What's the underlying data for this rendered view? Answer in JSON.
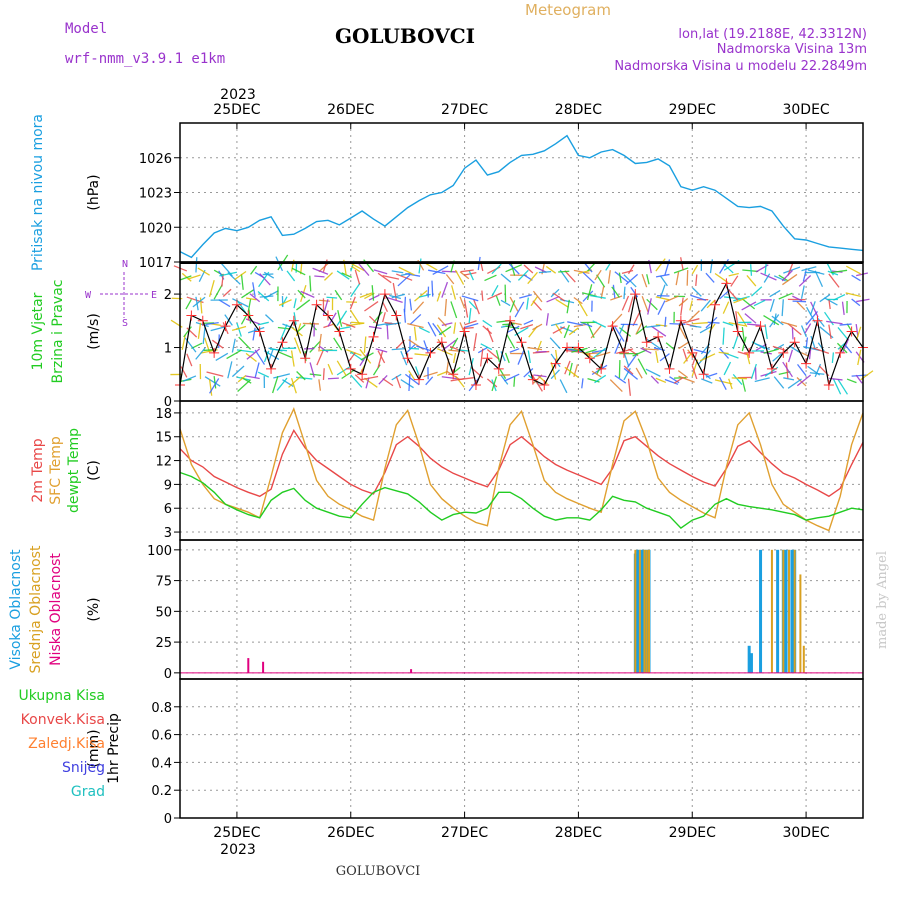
{
  "header": {
    "model_label": "Model",
    "model_name": "wrf-nmm_v3.9.1 e1km",
    "station": "GOLUBOVCI",
    "product": "Meteogram",
    "lonlat": "lon,lat (19.2188E, 42.3312N)",
    "elevation": "Nadmorska Visina 13m",
    "model_elevation": "Nadmorska Visina u modelu 22.2849m",
    "year_top": "2023",
    "year_bottom": "2023",
    "footer_station": "GOLUBOVCI",
    "credit": "made by Angel"
  },
  "colors": {
    "pressure": "#1a9fe0",
    "wind_line": "#000000",
    "wind_cross": "#ff3030",
    "temp2m": "#e84848",
    "sfc_temp": "#e0a030",
    "dewpt": "#22cc22",
    "cloud_high": "#1a9fe0",
    "cloud_mid": "#d8a020",
    "cloud_low": "#e0007f",
    "precip_total": "#22cc22",
    "precip_conv": "#e84848",
    "precip_frz": "#ff8030",
    "precip_snow": "#4040e0",
    "precip_grad": "#20c0c0",
    "wind_label": "#9933cc"
  },
  "chart_data": [
    {
      "type": "line",
      "panel": "pressure",
      "ylabel_lines": [
        "Pritisak na nivou mora"
      ],
      "unit": "(hPa)",
      "ylim": [
        1017,
        1029
      ],
      "yticks": [
        1017,
        1020,
        1023,
        1026
      ],
      "xlim": [
        0,
        6
      ],
      "xticks": [
        0.5,
        1.5,
        2.5,
        3.5,
        4.5,
        5.5
      ],
      "xtick_labels": [
        "25DEC",
        "26DEC",
        "27DEC",
        "28DEC",
        "29DEC",
        "30DEC"
      ],
      "grid": true,
      "series": [
        {
          "key": "pressure",
          "x": [
            0,
            0.1,
            0.2,
            0.3,
            0.4,
            0.5,
            0.6,
            0.7,
            0.8,
            0.9,
            1.0,
            1.1,
            1.2,
            1.3,
            1.4,
            1.5,
            1.6,
            1.7,
            1.8,
            1.9,
            2.0,
            2.1,
            2.2,
            2.3,
            2.4,
            2.5,
            2.6,
            2.7,
            2.8,
            2.9,
            3.0,
            3.1,
            3.2,
            3.3,
            3.4,
            3.5,
            3.6,
            3.7,
            3.8,
            3.9,
            4.0,
            4.1,
            4.2,
            4.3,
            4.4,
            4.5,
            4.6,
            4.7,
            4.8,
            4.9,
            5.0,
            5.1,
            5.2,
            5.3,
            5.4,
            5.5,
            5.6,
            5.7,
            5.8,
            5.9,
            6.0
          ],
          "values": [
            1017.9,
            1017.4,
            1018.5,
            1019.5,
            1019.9,
            1019.7,
            1020.0,
            1020.6,
            1020.9,
            1019.3,
            1019.4,
            1019.9,
            1020.5,
            1020.6,
            1020.2,
            1020.8,
            1021.4,
            1020.7,
            1020.1,
            1020.9,
            1021.7,
            1022.3,
            1022.8,
            1023.0,
            1023.6,
            1025.1,
            1025.8,
            1024.5,
            1024.8,
            1025.6,
            1026.2,
            1026.3,
            1026.6,
            1027.2,
            1027.9,
            1026.2,
            1026.0,
            1026.5,
            1026.7,
            1026.2,
            1025.5,
            1025.6,
            1025.9,
            1025.3,
            1023.5,
            1023.2,
            1023.5,
            1023.2,
            1022.5,
            1021.8,
            1021.7,
            1021.8,
            1021.4,
            1020.1,
            1019.0,
            1018.9,
            1018.6,
            1018.3,
            1018.2,
            1018.1,
            1018.0
          ]
        }
      ]
    },
    {
      "type": "line",
      "panel": "wind",
      "ylabel_lines": [
        "10m Vjetar",
        "Brzina i Pravac"
      ],
      "unit": "(m/s)",
      "direction_legend": [
        "W",
        "E",
        "N",
        "S"
      ],
      "ylim": [
        0,
        2.6
      ],
      "yticks": [
        0,
        1,
        2
      ],
      "xlim": [
        0,
        6
      ],
      "grid": true,
      "series": [
        {
          "key": "wind_speed",
          "x": [
            0,
            0.1,
            0.2,
            0.3,
            0.4,
            0.5,
            0.6,
            0.7,
            0.8,
            0.9,
            1.0,
            1.1,
            1.2,
            1.3,
            1.4,
            1.5,
            1.6,
            1.7,
            1.8,
            1.9,
            2.0,
            2.1,
            2.2,
            2.3,
            2.4,
            2.5,
            2.6,
            2.7,
            2.8,
            2.9,
            3.0,
            3.1,
            3.2,
            3.3,
            3.4,
            3.5,
            3.6,
            3.7,
            3.8,
            3.9,
            4.0,
            4.1,
            4.2,
            4.3,
            4.4,
            4.5,
            4.6,
            4.7,
            4.8,
            4.9,
            5.0,
            5.1,
            5.2,
            5.3,
            5.4,
            5.5,
            5.6,
            5.7,
            5.8,
            5.9,
            6.0
          ],
          "values": [
            0.3,
            1.6,
            1.5,
            0.9,
            1.4,
            1.8,
            1.6,
            1.3,
            0.6,
            1.1,
            1.5,
            0.8,
            1.8,
            1.6,
            1.3,
            0.6,
            0.5,
            1.2,
            2.0,
            1.6,
            0.8,
            0.4,
            0.9,
            1.1,
            0.5,
            1.3,
            0.3,
            0.8,
            0.6,
            1.5,
            1.1,
            0.4,
            0.3,
            0.7,
            1.0,
            1.0,
            0.8,
            0.6,
            1.4,
            0.9,
            2.0,
            1.1,
            1.2,
            0.6,
            1.5,
            0.9,
            0.5,
            1.8,
            2.2,
            1.3,
            0.9,
            1.4,
            0.6,
            0.9,
            1.1,
            0.7,
            1.5,
            0.3,
            0.9,
            1.3,
            1.0
          ]
        }
      ]
    },
    {
      "type": "line",
      "panel": "temperature",
      "ylabel_lines": [
        "2m Temp",
        "SFC Temp",
        "dewpt Temp"
      ],
      "unit": "(C)",
      "ylim": [
        2,
        19.5
      ],
      "yticks": [
        3,
        6,
        9,
        12,
        15,
        18
      ],
      "xlim": [
        0,
        6
      ],
      "grid": true,
      "series": [
        {
          "key": "temp2m",
          "x": [
            0,
            0.1,
            0.2,
            0.3,
            0.4,
            0.5,
            0.6,
            0.7,
            0.8,
            0.9,
            1.0,
            1.1,
            1.2,
            1.3,
            1.4,
            1.5,
            1.6,
            1.7,
            1.8,
            1.9,
            2.0,
            2.1,
            2.2,
            2.3,
            2.4,
            2.5,
            2.6,
            2.7,
            2.8,
            2.9,
            3.0,
            3.1,
            3.2,
            3.3,
            3.4,
            3.5,
            3.6,
            3.7,
            3.8,
            3.9,
            4.0,
            4.1,
            4.2,
            4.3,
            4.4,
            4.5,
            4.6,
            4.7,
            4.8,
            4.9,
            5.0,
            5.1,
            5.2,
            5.3,
            5.4,
            5.5,
            5.6,
            5.7,
            5.8,
            5.9,
            6.0
          ],
          "values": [
            13.5,
            12.0,
            11.2,
            10.0,
            9.3,
            8.6,
            8.0,
            7.5,
            8.4,
            12.8,
            15.8,
            13.6,
            12.0,
            11.0,
            10.0,
            9.0,
            8.3,
            7.8,
            10.5,
            14.0,
            15.0,
            13.8,
            12.3,
            11.2,
            10.4,
            9.8,
            9.2,
            8.7,
            10.8,
            14.0,
            15.0,
            13.8,
            12.5,
            11.5,
            10.8,
            10.2,
            9.6,
            9.0,
            11.0,
            14.5,
            15.0,
            13.8,
            12.6,
            11.6,
            10.8,
            10.0,
            9.3,
            8.8,
            11.0,
            13.8,
            14.5,
            13.0,
            11.6,
            10.4,
            9.8,
            9.0,
            8.3,
            7.5,
            8.5,
            11.5,
            14.3
          ]
        },
        {
          "key": "sfc_temp",
          "x": [
            0,
            0.1,
            0.2,
            0.3,
            0.4,
            0.5,
            0.6,
            0.7,
            0.8,
            0.9,
            1.0,
            1.1,
            1.2,
            1.3,
            1.4,
            1.5,
            1.6,
            1.7,
            1.8,
            1.9,
            2.0,
            2.1,
            2.2,
            2.3,
            2.4,
            2.5,
            2.6,
            2.7,
            2.8,
            2.9,
            3.0,
            3.1,
            3.2,
            3.3,
            3.4,
            3.5,
            3.6,
            3.7,
            3.8,
            3.9,
            4.0,
            4.1,
            4.2,
            4.3,
            4.4,
            4.5,
            4.6,
            4.7,
            4.8,
            4.9,
            5.0,
            5.1,
            5.2,
            5.3,
            5.4,
            5.5,
            5.6,
            5.7,
            5.8,
            5.9,
            6.0
          ],
          "values": [
            16.0,
            11.5,
            9.0,
            7.2,
            6.5,
            6.0,
            5.5,
            4.8,
            10.0,
            15.5,
            18.5,
            14.0,
            9.5,
            7.5,
            6.5,
            5.8,
            5.0,
            4.5,
            11.0,
            16.5,
            18.3,
            14.0,
            9.0,
            7.2,
            6.0,
            5.0,
            4.2,
            3.8,
            11.0,
            16.5,
            18.2,
            14.0,
            9.5,
            8.0,
            7.2,
            6.6,
            6.0,
            5.5,
            11.5,
            17.0,
            18.2,
            14.5,
            9.8,
            8.0,
            7.0,
            6.2,
            5.4,
            4.8,
            11.2,
            16.5,
            18.0,
            14.0,
            9.0,
            6.5,
            5.5,
            4.5,
            3.8,
            3.2,
            7.5,
            14.0,
            18.0
          ]
        },
        {
          "key": "dewpt",
          "x": [
            0,
            0.1,
            0.2,
            0.3,
            0.4,
            0.5,
            0.6,
            0.7,
            0.8,
            0.9,
            1.0,
            1.1,
            1.2,
            1.3,
            1.4,
            1.5,
            1.6,
            1.7,
            1.8,
            1.9,
            2.0,
            2.1,
            2.2,
            2.3,
            2.4,
            2.5,
            2.6,
            2.7,
            2.8,
            2.9,
            3.0,
            3.1,
            3.2,
            3.3,
            3.4,
            3.5,
            3.6,
            3.7,
            3.8,
            3.9,
            4.0,
            4.1,
            4.2,
            4.3,
            4.4,
            4.5,
            4.6,
            4.7,
            4.8,
            4.9,
            5.0,
            5.1,
            5.2,
            5.3,
            5.4,
            5.5,
            5.6,
            5.7,
            5.8,
            5.9,
            6.0
          ],
          "values": [
            10.5,
            10.0,
            9.2,
            8.0,
            6.5,
            5.8,
            5.2,
            4.8,
            7.0,
            8.0,
            8.5,
            7.0,
            6.0,
            5.5,
            5.0,
            4.8,
            6.5,
            8.0,
            8.6,
            8.2,
            7.8,
            6.8,
            5.5,
            4.5,
            5.2,
            5.5,
            5.4,
            6.0,
            8.0,
            8.0,
            7.2,
            6.0,
            5.0,
            4.5,
            4.8,
            4.8,
            4.5,
            5.8,
            7.5,
            7.0,
            6.8,
            6.0,
            5.5,
            5.0,
            3.5,
            4.5,
            5.0,
            6.5,
            7.2,
            6.5,
            6.2,
            6.0,
            5.8,
            5.5,
            5.2,
            4.5,
            4.8,
            5.0,
            5.5,
            6.0,
            5.8
          ]
        }
      ]
    },
    {
      "type": "bar",
      "panel": "cloud",
      "ylabel_lines": [
        "Visoka Oblacnost",
        "Srednja Oblacnost",
        "Niska Oblacnost"
      ],
      "unit": "(%)",
      "ylim": [
        -5,
        108
      ],
      "yticks": [
        0,
        25,
        50,
        75,
        100
      ],
      "xlim": [
        0,
        6
      ],
      "grid": true,
      "series": [
        {
          "key": "cloud_high",
          "x": [
            4.0,
            4.02,
            4.04,
            4.06,
            4.08,
            4.1,
            4.12,
            5.0,
            5.02,
            5.1,
            5.25,
            5.3,
            5.32,
            5.35,
            5.38,
            5.4
          ],
          "values": [
            97,
            100,
            100,
            100,
            100,
            100,
            100,
            22,
            16,
            100,
            100,
            100,
            100,
            100,
            100,
            100
          ]
        },
        {
          "key": "cloud_mid",
          "x": [
            4.0,
            4.04,
            4.08,
            4.1,
            4.12,
            5.2,
            5.3,
            5.35,
            5.4,
            5.45,
            5.48
          ],
          "values": [
            100,
            100,
            100,
            100,
            100,
            100,
            100,
            100,
            100,
            80,
            22
          ]
        },
        {
          "key": "cloud_low",
          "x": [
            0.6,
            0.73,
            2.03
          ],
          "values": [
            12,
            9,
            3
          ]
        }
      ]
    },
    {
      "type": "bar",
      "panel": "precip",
      "ylabel_lines": [
        "1hr Precip"
      ],
      "unit": "(mm)",
      "legend": [
        "Ukupna Kisa",
        "Konvek.Kisa",
        "Zaledj.Kisa",
        "Snijeg",
        "Grad"
      ],
      "ylim": [
        0,
        1.0
      ],
      "yticks": [
        0,
        0.2,
        0.4,
        0.6,
        0.8
      ],
      "xlim": [
        0,
        6
      ],
      "xticks": [
        0.5,
        1.5,
        2.5,
        3.5,
        4.5,
        5.5
      ],
      "xtick_labels": [
        "25DEC",
        "26DEC",
        "27DEC",
        "28DEC",
        "29DEC",
        "30DEC"
      ],
      "grid": true,
      "series": [
        {
          "key": "precip_total",
          "x": [],
          "values": []
        }
      ]
    }
  ]
}
